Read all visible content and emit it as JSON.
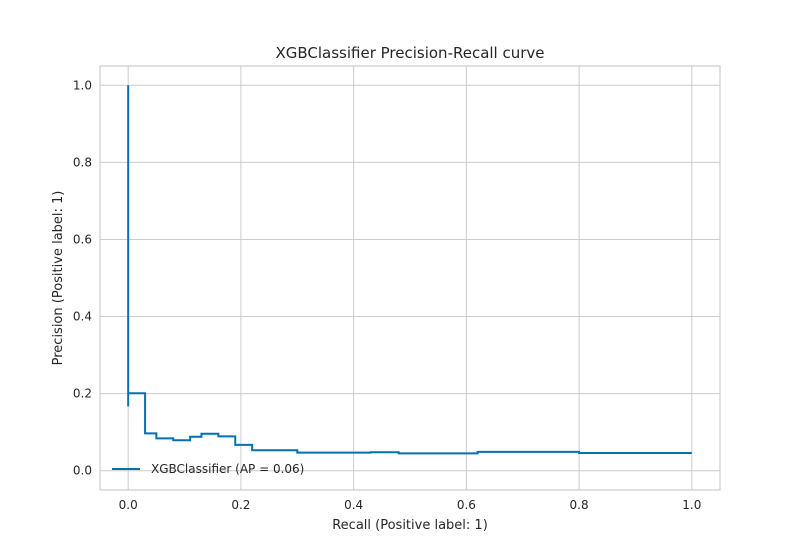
{
  "chart_data": {
    "type": "line",
    "title": "XGBClassifier Precision-Recall curve",
    "xlabel": "Recall (Positive label: 1)",
    "ylabel": "Precision (Positive label: 1)",
    "xlim": [
      -0.05,
      1.05
    ],
    "ylim": [
      -0.05,
      1.05
    ],
    "xticks": [
      0.0,
      0.2,
      0.4,
      0.6,
      0.8,
      1.0
    ],
    "xtick_labels": [
      "0.0",
      "0.2",
      "0.4",
      "0.6",
      "0.8",
      "1.0"
    ],
    "yticks": [
      0.0,
      0.2,
      0.4,
      0.6,
      0.8,
      1.0
    ],
    "ytick_labels": [
      "0.0",
      "0.2",
      "0.4",
      "0.6",
      "0.8",
      "1.0"
    ],
    "grid": true,
    "legend": {
      "placement": "lower-left",
      "entries": [
        "XGBClassifier (AP = 0.06)"
      ]
    },
    "series": [
      {
        "name": "XGBClassifier (AP = 0.06)",
        "color": "#0072b2",
        "drawstyle": "steps-post",
        "recall": [
          1.0,
          0.86,
          0.8,
          0.62,
          0.48,
          0.43,
          0.3,
          0.22,
          0.19,
          0.16,
          0.13,
          0.11,
          0.08,
          0.05,
          0.03,
          0.0,
          0.0
        ],
        "precision": [
          0.046,
          0.046,
          0.049,
          0.045,
          0.048,
          0.047,
          0.053,
          0.067,
          0.089,
          0.096,
          0.088,
          0.079,
          0.084,
          0.097,
          0.201,
          0.167,
          1.0
        ]
      }
    ]
  }
}
